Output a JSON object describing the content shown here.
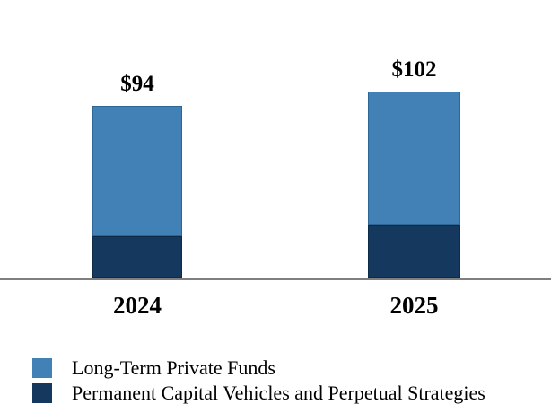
{
  "chart_data": {
    "type": "bar",
    "stacked": true,
    "categories": [
      "2024",
      "2025"
    ],
    "series": [
      {
        "name": "Long-Term Private Funds",
        "color": "#4181B5",
        "border_color": "#2F6693",
        "values": [
          71,
          73
        ]
      },
      {
        "name": "Permanent Capital Vehicles and Perpetual Strategies",
        "color": "#15395E",
        "border_color": "#0D2A47",
        "values": [
          23,
          29
        ]
      }
    ],
    "totals": [
      94,
      102
    ],
    "total_labels": [
      "$94",
      "$102"
    ],
    "legend_position": "bottom-left",
    "grid": false,
    "background_color": "#FFFFFF",
    "axis_line_color": "#7F7F7F",
    "text_color": "#000000"
  }
}
